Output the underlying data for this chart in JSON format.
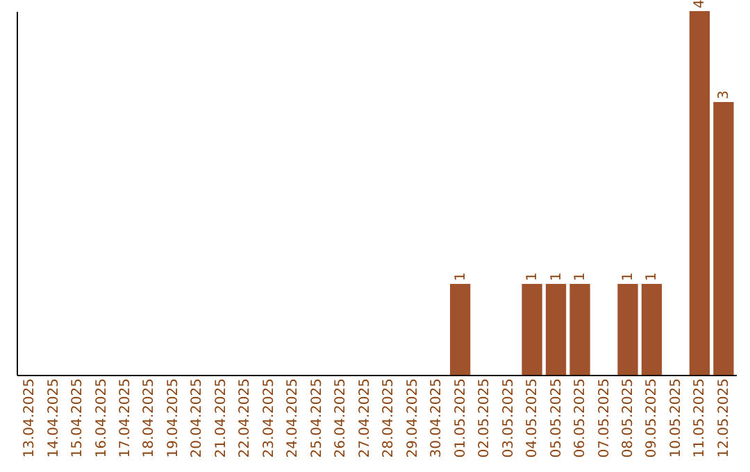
{
  "chart_data": {
    "type": "bar",
    "categories": [
      "13.04.2025",
      "14.04.2025",
      "15.04.2025",
      "16.04.2025",
      "17.04.2025",
      "18.04.2025",
      "19.04.2025",
      "20.04.2025",
      "21.04.2025",
      "22.04.2025",
      "23.04.2025",
      "24.04.2025",
      "25.04.2025",
      "26.04.2025",
      "27.04.2025",
      "28.04.2025",
      "29.04.2025",
      "30.04.2025",
      "01.05.2025",
      "02.05.2025",
      "03.05.2025",
      "04.05.2025",
      "05.05.2025",
      "06.05.2025",
      "07.05.2025",
      "08.05.2025",
      "09.05.2025",
      "10.05.2025",
      "11.05.2025",
      "12.05.2025"
    ],
    "values": [
      null,
      null,
      null,
      null,
      null,
      null,
      null,
      null,
      null,
      null,
      null,
      null,
      null,
      null,
      null,
      null,
      null,
      null,
      1,
      null,
      null,
      1,
      1,
      1,
      null,
      1,
      1,
      null,
      4,
      3
    ],
    "data_labels": true,
    "color": "#a0522d",
    "tick_labels": "x",
    "grid": false
  }
}
